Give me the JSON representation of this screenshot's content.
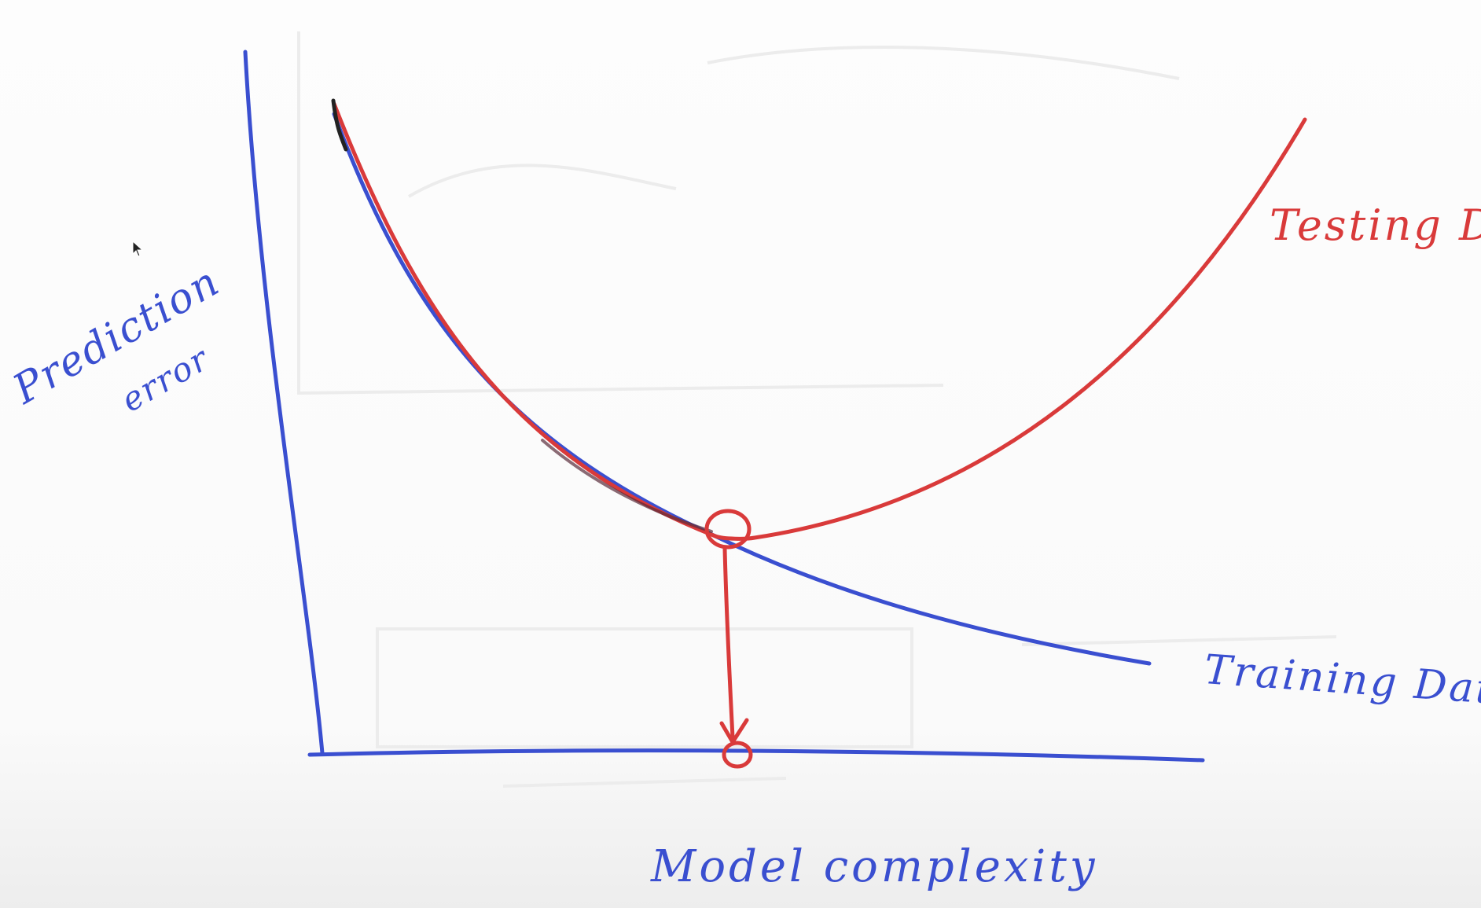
{
  "diagram": {
    "y_axis_label": [
      "Prediction",
      "error"
    ],
    "x_axis_label": "Model complexity",
    "curves": [
      {
        "name": "Testing Data",
        "color": "#d93a3a"
      },
      {
        "name": "Training Data",
        "color": "#3a4fd0"
      }
    ],
    "optimum_marker": "circle at intersection with arrow pointing down to the x-axis",
    "colors": {
      "blue_marker": "#3a4fd0",
      "red_marker": "#d93a3a",
      "black_marker": "#222222"
    }
  }
}
